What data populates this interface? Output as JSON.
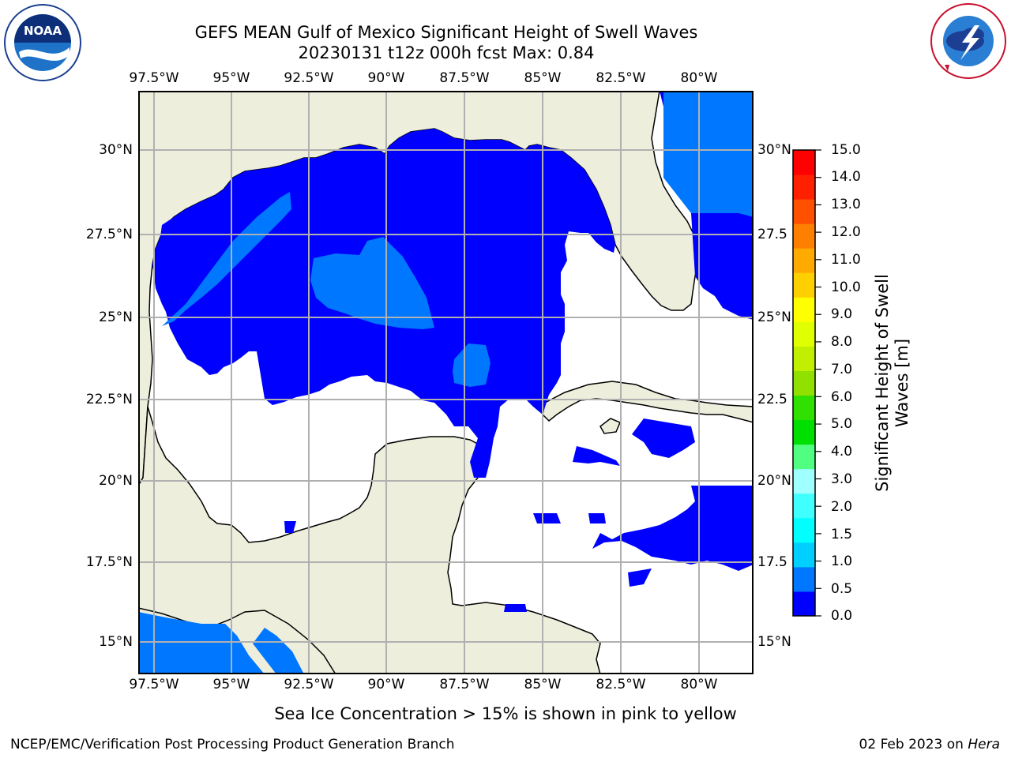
{
  "title": {
    "line1": "GEFS MEAN Gulf of Mexico Significant Height of Swell Waves",
    "line2": "20230131 t12z 000h fcst   Max: 0.84"
  },
  "logos": {
    "noaa_text": "NOAA",
    "noaa_ring": "NATIONAL OCEANIC AND ATMOSPHERIC ADMINISTRATION · U.S. DEPARTMENT OF COMMERCE",
    "nws_ring": "NATIONAL WEATHER SERVICE"
  },
  "map": {
    "lon_labels": [
      "97.5°W",
      "95°W",
      "92.5°W",
      "90°W",
      "87.5°W",
      "85°W",
      "82.5°W",
      "80°W"
    ],
    "lat_labels": [
      "30°N",
      "27.5°N",
      "25°N",
      "22.5°N",
      "20°N",
      "17.5°N",
      "15°N"
    ],
    "lat_labels_right": [
      "30°N",
      "27.5",
      "25°N",
      "22.5",
      "20°N",
      "17.5",
      "15°N"
    ],
    "land_color": "#eeeedd",
    "grid_color": "#b0b0b0"
  },
  "colorbar": {
    "label": "Significant Height of Swell Waves [m]",
    "ticks": [
      "15.0",
      "14.0",
      "13.0",
      "12.0",
      "11.0",
      "10.0",
      "9.0",
      "8.0",
      "7.0",
      "6.0",
      "5.0",
      "4.0",
      "3.0",
      "2.0",
      "1.5",
      "1.0",
      "0.5",
      "0.0"
    ],
    "colors_bottom_to_top": [
      "#0000ff",
      "#0077ff",
      "#00d0ff",
      "#00ffff",
      "#40ffff",
      "#a0ffff",
      "#50ff80",
      "#00e000",
      "#30e000",
      "#90e000",
      "#c0f000",
      "#e0ff00",
      "#ffff00",
      "#ffd000",
      "#ffaa00",
      "#ff8000",
      "#ff5000",
      "#ff2000",
      "#ff0000"
    ]
  },
  "caption": "Sea Ice Concentration > 15% is shown in pink to yellow",
  "footer": {
    "left": "NCEP/EMC/Verification Post Processing Product Generation Branch",
    "date": "02 Feb 2023 on ",
    "host": "Hera"
  }
}
